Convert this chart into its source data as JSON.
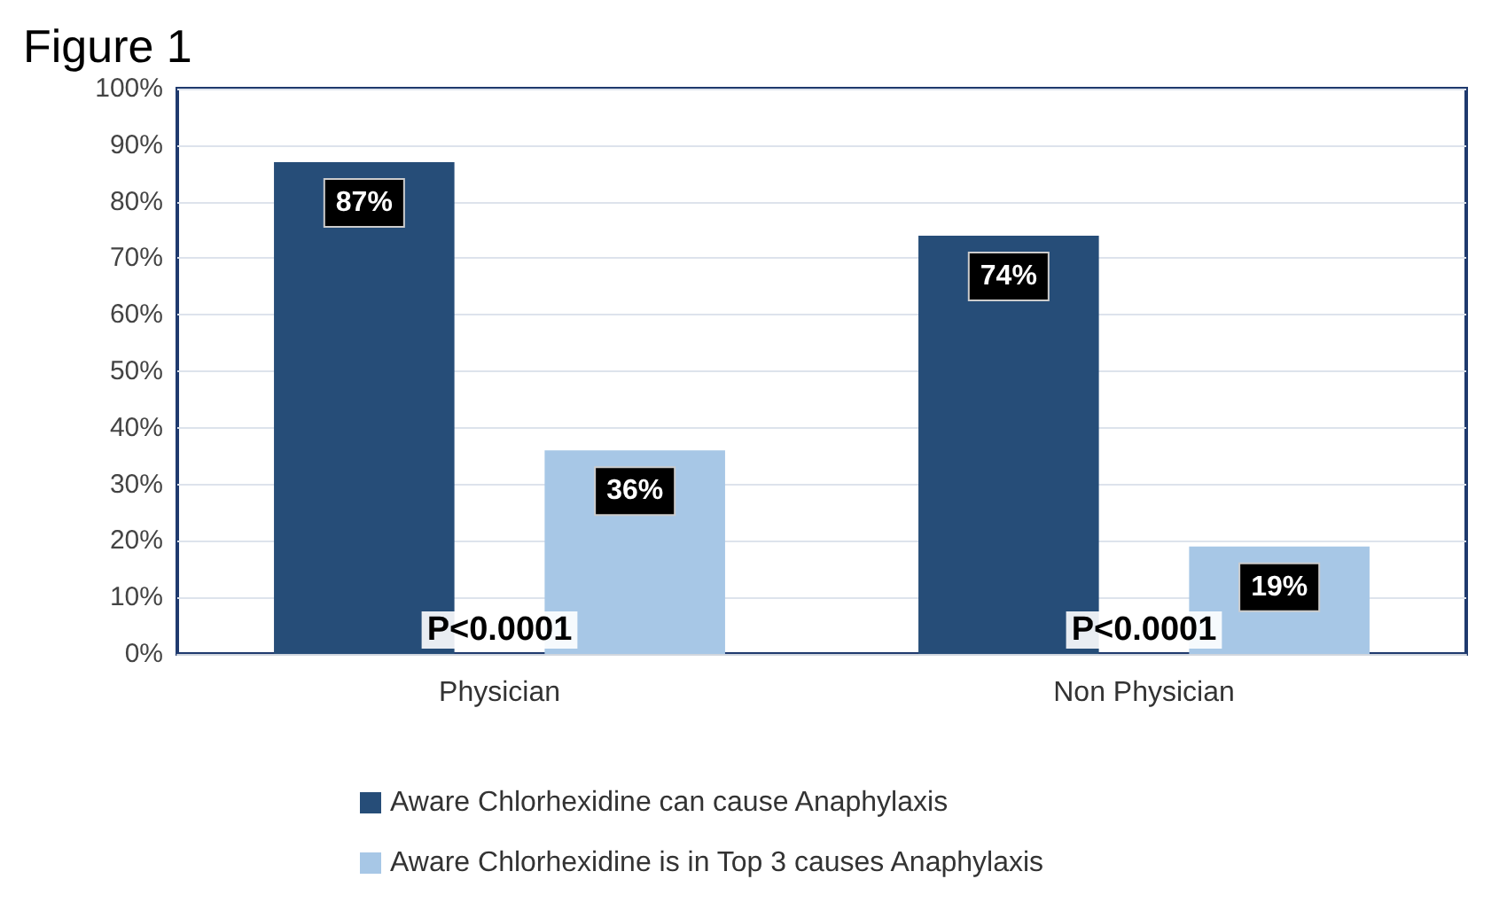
{
  "chart_data": {
    "type": "bar",
    "title": "Figure 1",
    "categories": [
      "Physician",
      "Non Physician"
    ],
    "series": [
      {
        "name": "Aware Chlorhexidine can cause Anaphylaxis",
        "color": "#264d78",
        "values": [
          87,
          74
        ],
        "value_labels": [
          "87%",
          "74%"
        ]
      },
      {
        "name": "Aware Chlorhexidine is in Top 3 causes Anaphylaxis",
        "color": "#a7c7e6",
        "values": [
          36,
          19
        ],
        "value_labels": [
          "36%",
          "19%"
        ]
      }
    ],
    "ylim": [
      0,
      100
    ],
    "yticks": [
      {
        "value": 0,
        "label": "0%"
      },
      {
        "value": 10,
        "label": "10%"
      },
      {
        "value": 20,
        "label": "20%"
      },
      {
        "value": 30,
        "label": "30%"
      },
      {
        "value": 40,
        "label": "40%"
      },
      {
        "value": 50,
        "label": "50%"
      },
      {
        "value": 60,
        "label": "60%"
      },
      {
        "value": 70,
        "label": "70%"
      },
      {
        "value": 80,
        "label": "80%"
      },
      {
        "value": 90,
        "label": "90%"
      },
      {
        "value": 100,
        "label": "100%"
      }
    ],
    "annotations": [
      "P<0.0001",
      "P<0.0001"
    ],
    "grid": "y",
    "legend": "bottom"
  }
}
